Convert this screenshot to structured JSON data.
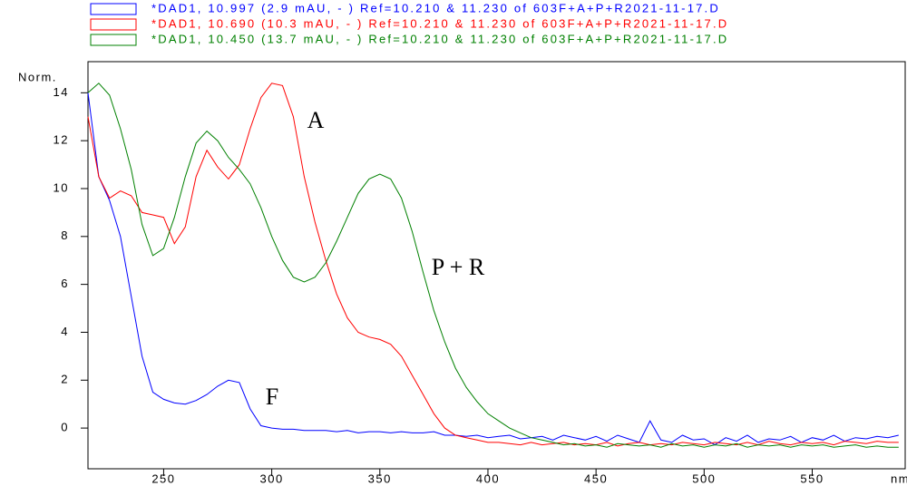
{
  "chart_data": {
    "type": "line",
    "xlabel": "nm",
    "ylabel": "Norm.",
    "xlim": [
      215,
      593
    ],
    "ylim": [
      -1.7,
      15.3
    ],
    "xticks": [
      250,
      300,
      350,
      400,
      450,
      500,
      550
    ],
    "yticks": [
      0,
      2,
      4,
      6,
      8,
      10,
      12,
      14
    ],
    "annotations": [
      "A",
      "P + R",
      "F"
    ],
    "x": [
      215,
      220,
      225,
      230,
      235,
      240,
      245,
      250,
      255,
      260,
      265,
      270,
      275,
      280,
      285,
      290,
      295,
      300,
      305,
      310,
      315,
      320,
      325,
      330,
      335,
      340,
      345,
      350,
      355,
      360,
      365,
      370,
      375,
      380,
      385,
      390,
      395,
      400,
      405,
      410,
      415,
      420,
      425,
      430,
      435,
      440,
      445,
      450,
      455,
      460,
      465,
      470,
      475,
      480,
      485,
      490,
      495,
      500,
      505,
      510,
      515,
      520,
      525,
      530,
      535,
      540,
      545,
      550,
      555,
      560,
      565,
      570,
      575,
      580,
      585,
      590
    ],
    "series": [
      {
        "name": "*DAD1, 10.997 (2.9 mAU, - ) Ref=10.210 & 11.230 of 603F+A+P+R2021-11-17.D",
        "color": "#0000ff",
        "values": [
          14,
          10.5,
          9.5,
          8,
          5.5,
          3,
          1.5,
          1.2,
          1.05,
          1.0,
          1.15,
          1.4,
          1.75,
          2.0,
          1.9,
          0.8,
          0.1,
          0,
          -0.05,
          -0.05,
          -0.1,
          -0.1,
          -0.1,
          -0.15,
          -0.1,
          -0.2,
          -0.15,
          -0.15,
          -0.2,
          -0.15,
          -0.2,
          -0.2,
          -0.15,
          -0.3,
          -0.3,
          -0.35,
          -0.3,
          -0.4,
          -0.35,
          -0.3,
          -0.45,
          -0.4,
          -0.35,
          -0.5,
          -0.3,
          -0.4,
          -0.5,
          -0.35,
          -0.55,
          -0.3,
          -0.45,
          -0.6,
          0.3,
          -0.5,
          -0.6,
          -0.3,
          -0.5,
          -0.45,
          -0.7,
          -0.4,
          -0.55,
          -0.3,
          -0.6,
          -0.45,
          -0.5,
          -0.35,
          -0.6,
          -0.4,
          -0.5,
          -0.3,
          -0.55,
          -0.4,
          -0.45,
          -0.35,
          -0.4,
          -0.3
        ]
      },
      {
        "name": "*DAD1, 10.690 (10.3 mAU, - ) Ref=10.210 & 11.230 of 603F+A+P+R2021-11-17.D",
        "color": "#ff0000",
        "values": [
          13,
          10.5,
          9.6,
          9.9,
          9.7,
          9.0,
          8.9,
          8.8,
          7.7,
          8.4,
          10.5,
          11.6,
          10.9,
          10.4,
          11.0,
          12.5,
          13.8,
          14.4,
          14.3,
          13.0,
          10.5,
          8.6,
          7.0,
          5.6,
          4.6,
          4.0,
          3.8,
          3.7,
          3.5,
          3.0,
          2.2,
          1.4,
          0.6,
          0.0,
          -0.3,
          -0.4,
          -0.5,
          -0.6,
          -0.6,
          -0.65,
          -0.7,
          -0.6,
          -0.7,
          -0.65,
          -0.6,
          -0.7,
          -0.65,
          -0.7,
          -0.6,
          -0.75,
          -0.65,
          -0.6,
          -0.7,
          -0.65,
          -0.7,
          -0.6,
          -0.65,
          -0.7,
          -0.6,
          -0.65,
          -0.7,
          -0.6,
          -0.7,
          -0.55,
          -0.65,
          -0.7,
          -0.6,
          -0.65,
          -0.6,
          -0.7,
          -0.55,
          -0.6,
          -0.65,
          -0.55,
          -0.6,
          -0.6
        ]
      },
      {
        "name": "*DAD1, 10.450 (13.7 mAU, - ) Ref=10.210 & 11.230 of 603F+A+P+R2021-11-17.D",
        "color": "#008000",
        "values": [
          14.0,
          14.4,
          13.9,
          12.5,
          10.8,
          8.5,
          7.2,
          7.5,
          8.8,
          10.5,
          11.9,
          12.4,
          12.0,
          11.3,
          10.8,
          10.2,
          9.2,
          8.0,
          7.0,
          6.3,
          6.1,
          6.3,
          6.9,
          7.8,
          8.8,
          9.8,
          10.4,
          10.6,
          10.4,
          9.6,
          8.2,
          6.5,
          4.9,
          3.6,
          2.5,
          1.7,
          1.1,
          0.6,
          0.3,
          0.0,
          -0.2,
          -0.4,
          -0.5,
          -0.6,
          -0.7,
          -0.65,
          -0.75,
          -0.7,
          -0.8,
          -0.65,
          -0.7,
          -0.75,
          -0.7,
          -0.8,
          -0.65,
          -0.75,
          -0.7,
          -0.8,
          -0.7,
          -0.75,
          -0.65,
          -0.8,
          -0.7,
          -0.75,
          -0.7,
          -0.8,
          -0.7,
          -0.75,
          -0.7,
          -0.8,
          -0.75,
          -0.7,
          -0.8,
          -0.75,
          -0.8,
          -0.8
        ]
      }
    ]
  }
}
